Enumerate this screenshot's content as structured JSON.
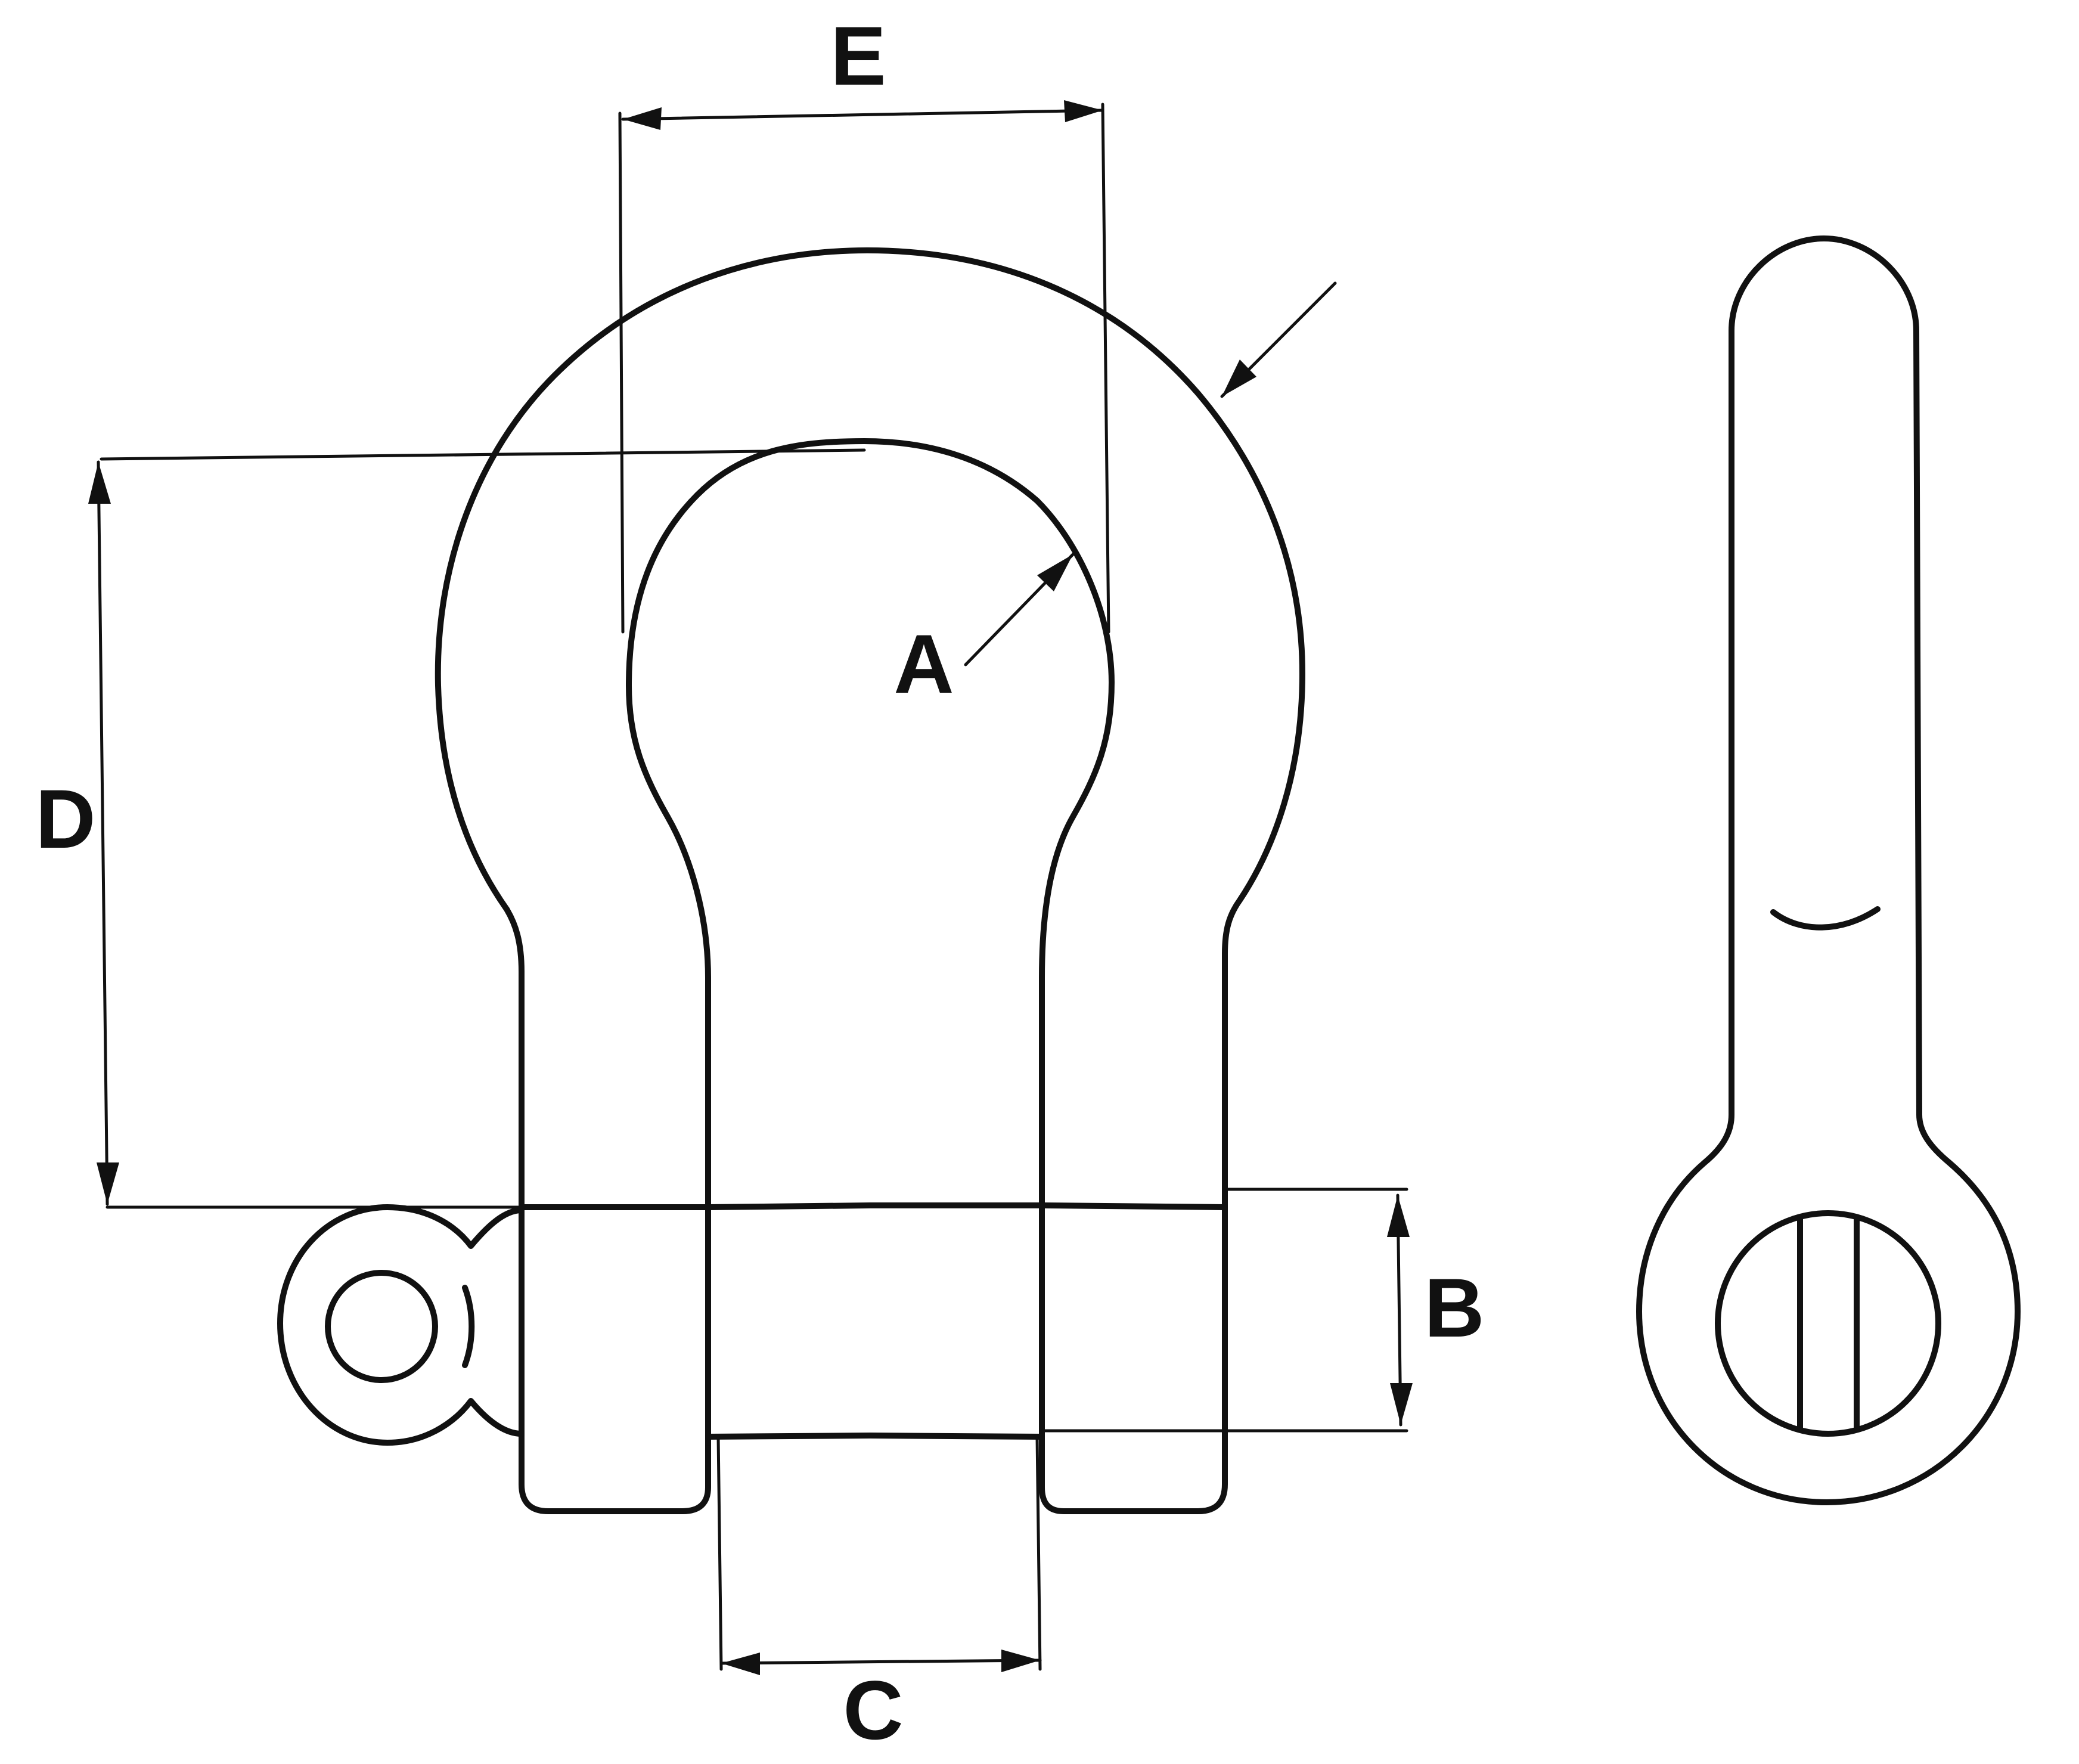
{
  "diagram": {
    "labels": {
      "a": "A",
      "b": "B",
      "c": "C",
      "d": "D",
      "e": "E"
    },
    "colors": {
      "line": "#111111",
      "background": "#ffffff"
    }
  }
}
